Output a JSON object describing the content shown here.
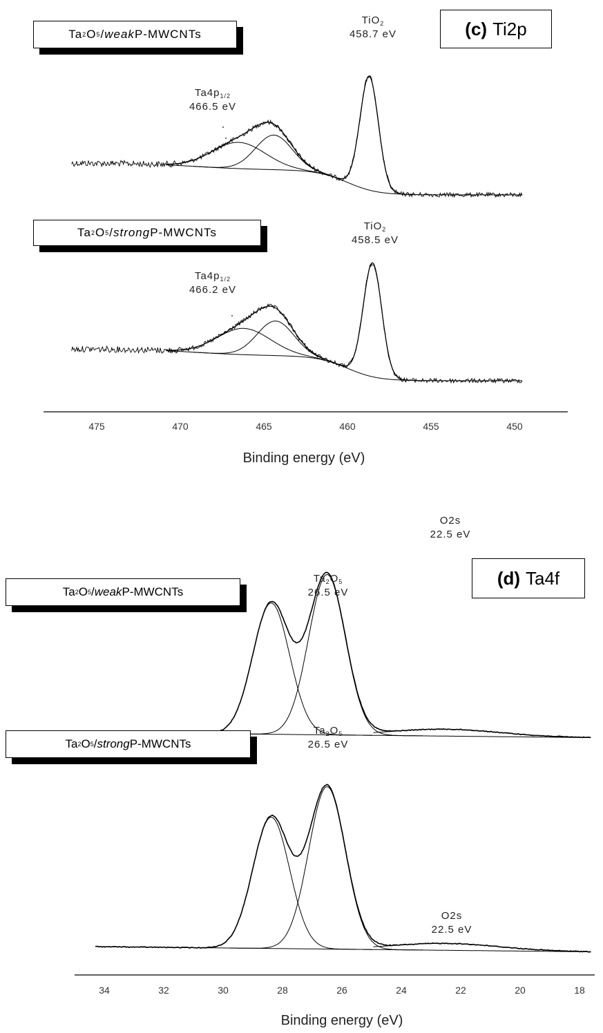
{
  "chart_data": [
    {
      "type": "line",
      "title": "(c) Ti2p",
      "title_bold": "(c)",
      "title_rest": "Ti2p",
      "xlabel": "Binding energy (eV)",
      "xlim": [
        477,
        449
      ],
      "xticks": [
        475,
        470,
        465,
        460,
        455,
        450
      ],
      "spectra": [
        {
          "label_base": "Ta",
          "label_sub1": "2",
          "label_mid": "O",
          "label_sub2": "5",
          "label_slash": "/",
          "label_italic": "weak",
          "label_tail": " P-MWCNTs",
          "peaks": [
            {
              "name_base": "TiO",
              "name_sub": "2",
              "value_text": "458.7 eV",
              "position": 458.7
            },
            {
              "name_base": "Ta4p",
              "name_sub": "1/2",
              "value_text": "466.5 eV",
              "position": 466.5
            }
          ]
        },
        {
          "label_base": "Ta",
          "label_sub1": "2",
          "label_mid": "O",
          "label_sub2": "5",
          "label_slash": "/",
          "label_italic": "strong",
          "label_tail": " P-MWCNTs",
          "peaks": [
            {
              "name_base": "TiO",
              "name_sub": "2",
              "value_text": "458.5 eV",
              "position": 458.5
            },
            {
              "name_base": "Ta4p",
              "name_sub": "1/2",
              "value_text": "466.2 eV",
              "position": 466.2
            }
          ]
        }
      ]
    },
    {
      "type": "line",
      "title": "(d) Ta4f",
      "title_bold": "(d)",
      "title_rest": "Ta4f",
      "xlabel": "Binding energy (eV)",
      "xlim": [
        35,
        17
      ],
      "xticks": [
        34,
        32,
        30,
        28,
        26,
        24,
        22,
        20,
        18
      ],
      "spectra": [
        {
          "label_base": "Ta",
          "label_sub1": "2",
          "label_mid": "O",
          "label_sub2": "5",
          "label_slash": "/",
          "label_italic": "weak",
          "label_tail": " P-MWCNTs",
          "peaks": [
            {
              "name_base": "Ta",
              "name_sub": "2",
              "name_mid": "O",
              "name_sub2": "5",
              "value_text": "26.5 eV",
              "position": 26.5
            },
            {
              "name_base": "O2s",
              "value_text": "22.5 eV",
              "position": 22.5
            }
          ]
        },
        {
          "label_base": "Ta",
          "label_sub1": "2",
          "label_mid": "O",
          "label_sub2": "5",
          "label_slash": "/",
          "label_italic": "strong",
          "label_tail": " P-MWCNTs",
          "peaks": [
            {
              "name_base": "Ta",
              "name_sub": "2",
              "name_mid": "O",
              "name_sub2": "5",
              "value_text": "26.5 eV",
              "position": 26.5
            },
            {
              "name_base": "O2s",
              "value_text": "22.5 eV",
              "position": 22.5
            }
          ]
        }
      ]
    }
  ]
}
